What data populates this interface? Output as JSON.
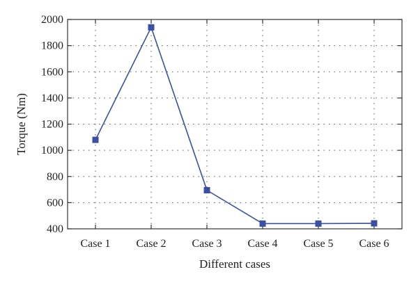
{
  "chart_data": {
    "type": "line",
    "title": "",
    "xlabel": "Different cases",
    "ylabel": "Torque (Nm)",
    "categories": [
      "Case 1",
      "Case 2",
      "Case 3",
      "Case 4",
      "Case 5",
      "Case 6"
    ],
    "series": [
      {
        "values": [
          1080,
          1940,
          695,
          440,
          440,
          442
        ]
      }
    ],
    "ylim": [
      400,
      2000
    ],
    "yticks": [
      400,
      600,
      800,
      1000,
      1200,
      1400,
      1600,
      1800,
      2000
    ],
    "grid": true,
    "marker": "square",
    "color": "#3b4fa3"
  }
}
